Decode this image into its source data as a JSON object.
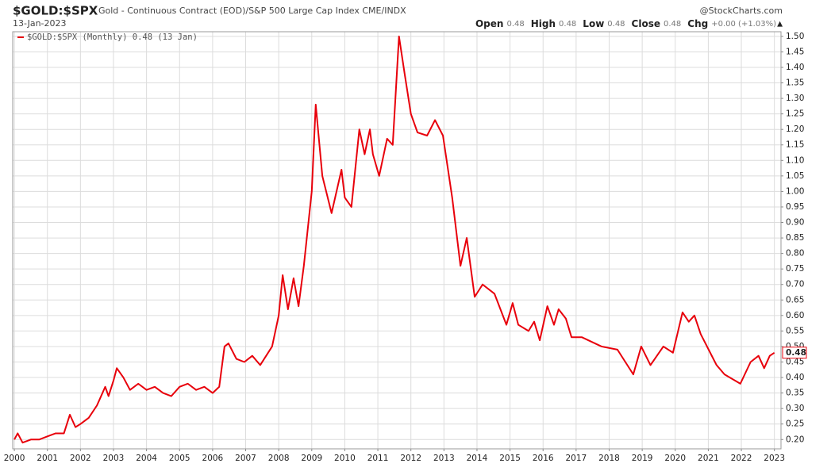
{
  "chart_data": {
    "type": "line",
    "title": "$GOLD:$SPX",
    "subtitle": "Gold - Continuous Contract (EOD)/S&P 500 Large Cap Index CME/INDX",
    "source": "@StockCharts.com",
    "date": "13-Jan-2023",
    "quote": [
      {
        "label": "Open",
        "value": 0.48
      },
      {
        "label": "High",
        "value": 0.48
      },
      {
        "label": "Low",
        "value": 0.48
      },
      {
        "label": "Close",
        "value": 0.48
      },
      {
        "label": "Chg",
        "value": "+0.00 (+1.03%)"
      }
    ],
    "chg_arrow": "▲",
    "current_value": 0.48,
    "grid": true,
    "xlim": [
      1999.95,
      2023.2
    ],
    "ylim": [
      0.17,
      1.515
    ],
    "xticks": [
      2000,
      2001,
      2002,
      2003,
      2004,
      2005,
      2006,
      2007,
      2008,
      2009,
      2010,
      2011,
      2012,
      2013,
      2014,
      2015,
      2016,
      2017,
      2018,
      2019,
      2020,
      2021,
      2022,
      2023
    ],
    "yticks": [
      {
        "value": 0.2,
        "label": "0.20"
      },
      {
        "value": 0.25,
        "label": "0.25"
      },
      {
        "value": 0.3,
        "label": "0.30"
      },
      {
        "value": 0.35,
        "label": "0.35"
      },
      {
        "value": 0.4,
        "label": "0.40"
      },
      {
        "value": 0.45,
        "label": "0.45"
      },
      {
        "value": 0.5,
        "label": "0.50"
      },
      {
        "value": 0.55,
        "label": "0.55"
      },
      {
        "value": 0.6,
        "label": "0.60"
      },
      {
        "value": 0.65,
        "label": "0.65"
      },
      {
        "value": 0.7,
        "label": "0.70"
      },
      {
        "value": 0.75,
        "label": "0.75"
      },
      {
        "value": 0.8,
        "label": "0.80"
      },
      {
        "value": 0.85,
        "label": "0.85"
      },
      {
        "value": 0.9,
        "label": "0.90"
      },
      {
        "value": 0.95,
        "label": "0.95"
      },
      {
        "value": 1.0,
        "label": "1.00"
      },
      {
        "value": 1.05,
        "label": "1.05"
      },
      {
        "value": 1.1,
        "label": "1.10"
      },
      {
        "value": 1.15,
        "label": "1.15"
      },
      {
        "value": 1.2,
        "label": "1.20"
      },
      {
        "value": 1.25,
        "label": "1.25"
      },
      {
        "value": 1.3,
        "label": "1.30"
      },
      {
        "value": 1.35,
        "label": "1.35"
      },
      {
        "value": 1.4,
        "label": "1.40"
      },
      {
        "value": 1.45,
        "label": "1.45"
      },
      {
        "value": 1.5,
        "label": "1.50"
      }
    ],
    "x": [
      2000.0,
      2000.1,
      2000.25,
      2000.5,
      2000.75,
      2001.0,
      2001.25,
      2001.5,
      2001.68,
      2001.85,
      2002.0,
      2002.25,
      2002.5,
      2002.75,
      2002.85,
      2003.0,
      2003.1,
      2003.3,
      2003.5,
      2003.75,
      2004.0,
      2004.25,
      2004.5,
      2004.75,
      2005.0,
      2005.25,
      2005.5,
      2005.75,
      2006.0,
      2006.2,
      2006.36,
      2006.48,
      2006.72,
      2006.96,
      2007.2,
      2007.44,
      2007.8,
      2008.0,
      2008.12,
      2008.28,
      2008.45,
      2008.6,
      2008.76,
      2008.88,
      2009.0,
      2009.12,
      2009.32,
      2009.6,
      2009.9,
      2010.0,
      2010.2,
      2010.44,
      2010.6,
      2010.76,
      2010.85,
      2011.04,
      2011.28,
      2011.45,
      2011.64,
      2011.81,
      2012.0,
      2012.2,
      2012.49,
      2012.73,
      2012.97,
      2013.25,
      2013.5,
      2013.69,
      2013.93,
      2014.17,
      2014.53,
      2014.89,
      2015.08,
      2015.25,
      2015.56,
      2015.73,
      2015.9,
      2016.13,
      2016.33,
      2016.47,
      2016.69,
      2016.86,
      2017.17,
      2017.77,
      2018.25,
      2018.73,
      2018.97,
      2019.25,
      2019.64,
      2019.93,
      2020.22,
      2020.41,
      2020.58,
      2020.77,
      2021.01,
      2021.25,
      2021.49,
      2021.97,
      2022.28,
      2022.52,
      2022.69,
      2022.86,
      2023.0
    ],
    "series": [
      {
        "name": "$GOLD:$SPX (Monthly) 0.48 (13 Jan)",
        "color": "#e8000b",
        "values": [
          0.2,
          0.22,
          0.19,
          0.2,
          0.2,
          0.21,
          0.22,
          0.22,
          0.28,
          0.24,
          0.25,
          0.27,
          0.31,
          0.37,
          0.34,
          0.39,
          0.43,
          0.4,
          0.36,
          0.38,
          0.36,
          0.37,
          0.35,
          0.34,
          0.37,
          0.38,
          0.36,
          0.37,
          0.35,
          0.37,
          0.5,
          0.51,
          0.46,
          0.45,
          0.47,
          0.44,
          0.5,
          0.6,
          0.73,
          0.62,
          0.72,
          0.63,
          0.76,
          0.88,
          1.0,
          1.28,
          1.05,
          0.93,
          1.07,
          0.98,
          0.95,
          1.2,
          1.12,
          1.2,
          1.12,
          1.05,
          1.17,
          1.15,
          1.5,
          1.38,
          1.25,
          1.19,
          1.18,
          1.23,
          1.18,
          0.98,
          0.76,
          0.85,
          0.66,
          0.7,
          0.67,
          0.57,
          0.64,
          0.57,
          0.55,
          0.58,
          0.52,
          0.63,
          0.57,
          0.62,
          0.59,
          0.53,
          0.53,
          0.5,
          0.49,
          0.41,
          0.5,
          0.44,
          0.5,
          0.48,
          0.61,
          0.58,
          0.6,
          0.54,
          0.49,
          0.44,
          0.41,
          0.38,
          0.45,
          0.47,
          0.43,
          0.47,
          0.48
        ]
      }
    ]
  }
}
